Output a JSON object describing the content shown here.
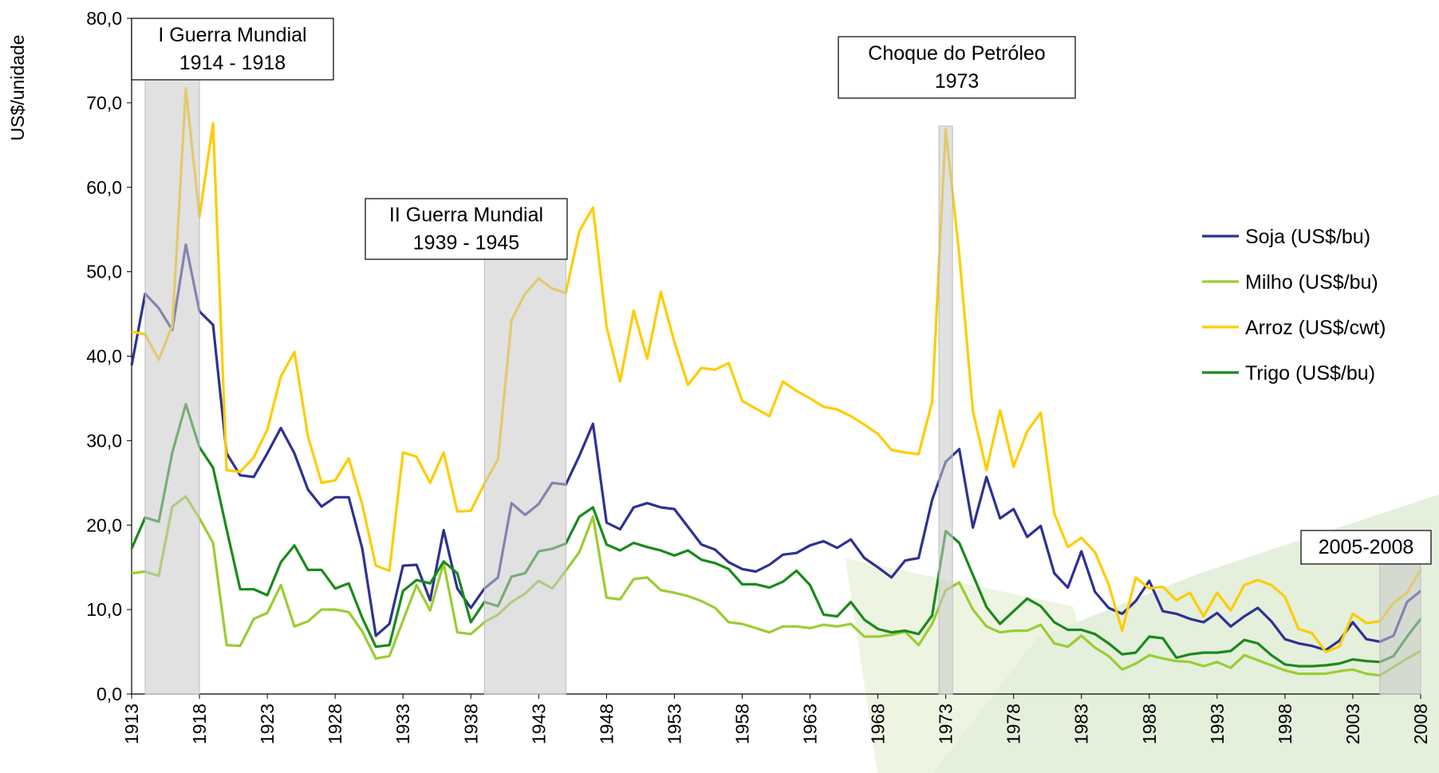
{
  "chart_data": {
    "type": "line",
    "y_label": "US$/unidade",
    "x": [
      1913,
      1914,
      1915,
      1916,
      1917,
      1918,
      1919,
      1920,
      1921,
      1922,
      1923,
      1924,
      1925,
      1926,
      1927,
      1928,
      1929,
      1930,
      1931,
      1932,
      1933,
      1934,
      1935,
      1936,
      1937,
      1938,
      1939,
      1940,
      1941,
      1942,
      1943,
      1944,
      1945,
      1946,
      1947,
      1948,
      1949,
      1950,
      1951,
      1952,
      1953,
      1954,
      1955,
      1956,
      1957,
      1958,
      1959,
      1960,
      1961,
      1962,
      1963,
      1964,
      1965,
      1966,
      1967,
      1968,
      1969,
      1970,
      1971,
      1972,
      1973,
      1974,
      1975,
      1976,
      1977,
      1978,
      1979,
      1980,
      1981,
      1982,
      1983,
      1984,
      1985,
      1986,
      1987,
      1988,
      1989,
      1990,
      1991,
      1992,
      1993,
      1994,
      1995,
      1996,
      1997,
      1998,
      1999,
      2000,
      2001,
      2002,
      2003,
      2004,
      2005,
      2006,
      2007,
      2008
    ],
    "xlim": [
      1913,
      2008
    ],
    "xticks": [
      1913,
      1918,
      1923,
      1928,
      1933,
      1938,
      1943,
      1948,
      1953,
      1958,
      1963,
      1968,
      1973,
      1978,
      1983,
      1988,
      1993,
      1998,
      2003,
      2008
    ],
    "ylim": [
      0,
      80
    ],
    "yticks": [
      {
        "value": 0,
        "label": "0,0"
      },
      {
        "value": 10,
        "label": "10,0"
      },
      {
        "value": 20,
        "label": "20,0"
      },
      {
        "value": 30,
        "label": "30,0"
      },
      {
        "value": 40,
        "label": "40,0"
      },
      {
        "value": 50,
        "label": "50,0"
      },
      {
        "value": 60,
        "label": "60,0"
      },
      {
        "value": 70,
        "label": "70,0"
      },
      {
        "value": 80,
        "label": "80,0"
      }
    ],
    "grid": false,
    "legend": "right",
    "series": [
      {
        "name": "Soja (US$/bu)",
        "color": "#2e3192",
        "values": [
          38.9,
          47.4,
          45.7,
          43.1,
          53.2,
          45.3,
          43.7,
          28.5,
          25.9,
          25.7,
          28.5,
          31.5,
          28.5,
          24.2,
          22.2,
          23.3,
          23.3,
          17.2,
          6.9,
          8.3,
          15.2,
          15.3,
          11.1,
          19.4,
          12.5,
          10.2,
          12.5,
          13.8,
          22.6,
          21.2,
          22.5,
          25.0,
          24.8,
          28.2,
          32.0,
          20.3,
          19.5,
          22.1,
          22.6,
          22.1,
          21.9,
          19.8,
          17.7,
          17.1,
          15.6,
          14.8,
          14.5,
          15.3,
          16.5,
          16.7,
          17.6,
          18.1,
          17.3,
          18.3,
          16.1,
          15.0,
          13.8,
          15.8,
          16.1,
          23.0,
          27.5,
          29.0,
          19.7,
          25.7,
          20.8,
          21.9,
          18.6,
          19.9,
          14.3,
          12.6,
          16.9,
          12.1,
          10.2,
          9.5,
          11.0,
          13.4,
          9.8,
          9.5,
          8.9,
          8.5,
          9.6,
          8.0,
          9.2,
          10.2,
          8.6,
          6.5,
          6.0,
          5.7,
          5.2,
          6.3,
          8.5,
          6.5,
          6.2,
          6.9,
          10.9,
          12.2
        ]
      },
      {
        "name": "Milho (US$/bu)",
        "color": "#9acd32",
        "values": [
          14.3,
          14.5,
          14.0,
          22.2,
          23.4,
          20.8,
          17.9,
          5.8,
          5.7,
          8.9,
          9.6,
          12.9,
          8.0,
          8.6,
          10.0,
          10.0,
          9.7,
          7.4,
          4.2,
          4.5,
          8.7,
          12.9,
          9.9,
          15.5,
          7.3,
          7.1,
          8.5,
          9.4,
          10.9,
          11.9,
          13.4,
          12.5,
          14.6,
          16.8,
          21.0,
          11.4,
          11.2,
          13.6,
          13.8,
          12.3,
          12.0,
          11.6,
          11.0,
          10.2,
          8.5,
          8.3,
          7.8,
          7.3,
          8.0,
          8.0,
          7.8,
          8.2,
          8.0,
          8.3,
          6.8,
          6.8,
          7.0,
          7.4,
          5.8,
          8.3,
          12.3,
          13.2,
          10.0,
          8.0,
          7.3,
          7.5,
          7.5,
          8.2,
          6.0,
          5.6,
          6.9,
          5.5,
          4.5,
          2.9,
          3.6,
          4.6,
          4.2,
          3.9,
          3.8,
          3.3,
          3.8,
          3.1,
          4.6,
          4.0,
          3.4,
          2.8,
          2.4,
          2.4,
          2.4,
          2.7,
          2.9,
          2.4,
          2.2,
          3.2,
          4.2,
          5.1
        ]
      },
      {
        "name": "Arroz (US$/cwt)",
        "color": "#ffcc00",
        "values": [
          42.9,
          42.6,
          39.6,
          43.6,
          71.7,
          56.5,
          67.6,
          26.5,
          26.3,
          28.0,
          31.3,
          37.6,
          40.5,
          30.5,
          25.0,
          25.3,
          27.9,
          22.4,
          15.2,
          14.6,
          28.6,
          28.1,
          25.0,
          28.6,
          21.6,
          21.7,
          24.9,
          27.8,
          44.3,
          47.4,
          49.2,
          48.0,
          47.5,
          54.8,
          57.6,
          43.5,
          37.0,
          45.4,
          39.7,
          47.6,
          41.7,
          36.6,
          38.6,
          38.4,
          39.2,
          34.7,
          33.8,
          32.9,
          37.0,
          35.9,
          35.0,
          34.0,
          33.7,
          32.9,
          31.9,
          30.8,
          28.9,
          28.6,
          28.4,
          34.6,
          66.9,
          52.0,
          33.5,
          26.5,
          33.6,
          26.9,
          31.1,
          33.3,
          21.4,
          17.4,
          18.5,
          16.8,
          13.0,
          7.5,
          13.8,
          12.5,
          12.7,
          11.1,
          12.0,
          9.2,
          12.0,
          9.9,
          12.9,
          13.5,
          12.9,
          11.5,
          7.7,
          7.2,
          5.0,
          5.6,
          9.5,
          8.4,
          8.6,
          10.8,
          12.0,
          14.7
        ]
      },
      {
        "name": "Trigo (US$/bu)",
        "color": "#1a8a1a",
        "values": [
          17.2,
          20.9,
          20.4,
          28.6,
          34.3,
          29.2,
          26.8,
          19.5,
          12.4,
          12.4,
          11.7,
          15.6,
          17.6,
          14.7,
          14.7,
          12.5,
          13.1,
          9.0,
          5.6,
          5.8,
          12.2,
          13.5,
          13.1,
          15.7,
          14.3,
          8.5,
          10.9,
          10.4,
          13.9,
          14.3,
          16.9,
          17.2,
          17.8,
          21.0,
          22.1,
          17.7,
          17.0,
          17.9,
          17.4,
          17.0,
          16.4,
          17.0,
          15.9,
          15.5,
          14.8,
          13.0,
          13.0,
          12.6,
          13.3,
          14.6,
          12.9,
          9.4,
          9.2,
          10.9,
          8.8,
          7.7,
          7.3,
          7.5,
          7.1,
          9.3,
          19.3,
          17.9,
          14.1,
          10.3,
          8.3,
          9.8,
          11.3,
          10.4,
          8.5,
          7.6,
          7.6,
          7.1,
          6.0,
          4.7,
          4.9,
          6.8,
          6.6,
          4.3,
          4.7,
          4.9,
          4.9,
          5.1,
          6.4,
          6.0,
          4.6,
          3.5,
          3.3,
          3.3,
          3.4,
          3.6,
          4.1,
          3.9,
          3.8,
          4.5,
          6.8,
          8.9
        ]
      }
    ],
    "annotations": [
      {
        "lines": [
          "I Guerra Mundial",
          "1914 - 1918"
        ],
        "span": [
          1914,
          1918
        ]
      },
      {
        "lines": [
          "II Guerra Mundial",
          "1939 - 1945"
        ],
        "span": [
          1939,
          1945
        ]
      },
      {
        "lines": [
          "Choque do Petróleo",
          "1973"
        ],
        "span": [
          1972.5,
          1973.5
        ]
      },
      {
        "lines": [
          "2005-2008"
        ],
        "span": [
          2005,
          2008
        ]
      }
    ]
  }
}
